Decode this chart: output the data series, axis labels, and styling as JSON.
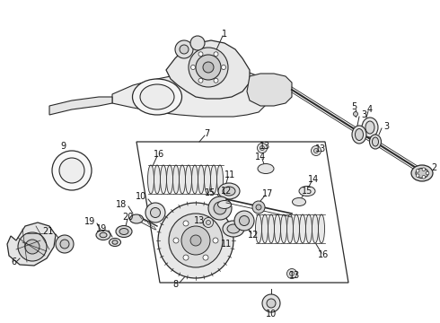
{
  "background_color": "#ffffff",
  "line_color": "#2a2a2a",
  "fig_width": 4.9,
  "fig_height": 3.6,
  "dpi": 100
}
